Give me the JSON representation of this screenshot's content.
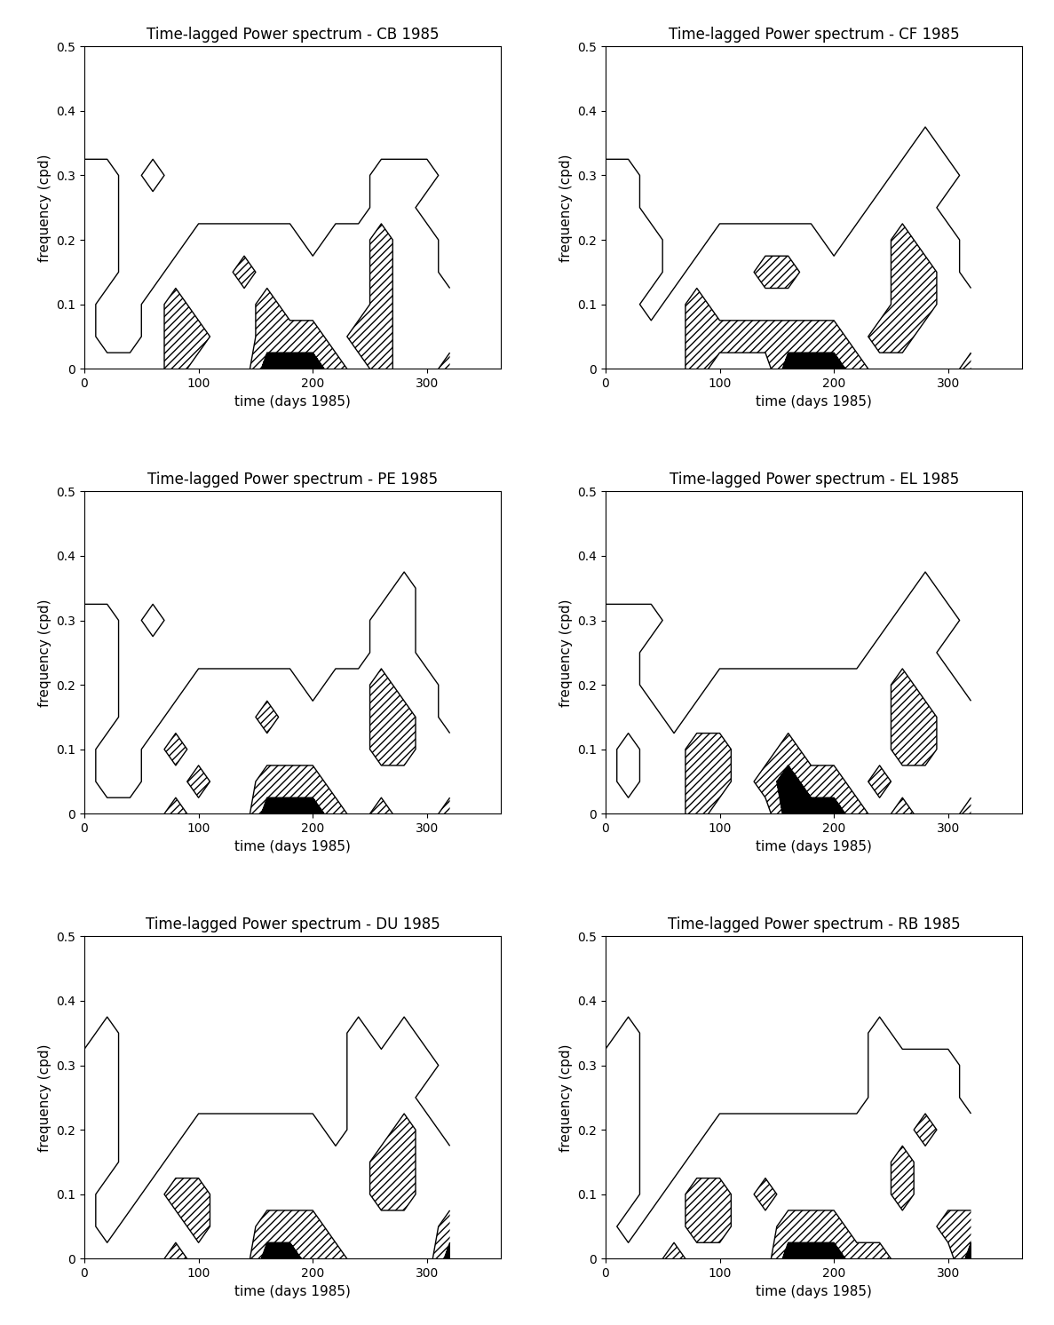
{
  "chart_data": [
    {
      "type": "contour",
      "title": "Time-lagged Power spectrum - CB 1985",
      "x_label": "time (days 1985)",
      "y_label": "frequency (cpd)",
      "x": [
        0,
        20,
        40,
        60,
        80,
        100,
        120,
        140,
        160,
        180,
        200,
        220,
        240,
        260,
        280,
        300,
        320
      ],
      "y": [
        0,
        0.05,
        0.1,
        0.15,
        0.2,
        0.25,
        0.3,
        0.35,
        0.4
      ],
      "z": [
        [
          1,
          1,
          1,
          1,
          2,
          1,
          1,
          1,
          3,
          3,
          3,
          2,
          1,
          2,
          1,
          1,
          2
        ],
        [
          1,
          0,
          0,
          1,
          2,
          2,
          1,
          1,
          2,
          2,
          2,
          1,
          2,
          2,
          1,
          1,
          1
        ],
        [
          1,
          0,
          0,
          1,
          2,
          1,
          1,
          1,
          2,
          1,
          1,
          1,
          1,
          2,
          1,
          1,
          1
        ],
        [
          1,
          1,
          0,
          0,
          1,
          1,
          1,
          2,
          1,
          1,
          1,
          1,
          1,
          2,
          1,
          1,
          0
        ],
        [
          1,
          1,
          0,
          0,
          0,
          1,
          1,
          1,
          1,
          1,
          0,
          1,
          1,
          2,
          1,
          1,
          0
        ],
        [
          1,
          1,
          0,
          0,
          0,
          0,
          0,
          0,
          0,
          0,
          0,
          0,
          0,
          1,
          1,
          0,
          0
        ],
        [
          1,
          1,
          0,
          1,
          0,
          0,
          0,
          0,
          0,
          0,
          0,
          0,
          0,
          1,
          1,
          1,
          0
        ],
        [
          0,
          0,
          0,
          0,
          0,
          0,
          0,
          0,
          0,
          0,
          0,
          0,
          0,
          0,
          0,
          0,
          0
        ],
        [
          0,
          0,
          0,
          0,
          0,
          0,
          0,
          0,
          0,
          0,
          0,
          0,
          0,
          0,
          0,
          0,
          0
        ]
      ],
      "levels": [
        0.5,
        1.5,
        2.5
      ],
      "xlim": [
        0,
        365
      ],
      "ylim": [
        0,
        0.5
      ],
      "xticks": [
        0,
        100,
        200,
        300
      ],
      "yticks": [
        0,
        0.1,
        0.2,
        0.3,
        0.4,
        0.5
      ],
      "grid": false
    },
    {
      "type": "contour",
      "title": "Time-lagged Power spectrum - CF 1985",
      "x_label": "time (days 1985)",
      "y_label": "frequency (cpd)",
      "x": [
        0,
        20,
        40,
        60,
        80,
        100,
        120,
        140,
        160,
        180,
        200,
        220,
        240,
        260,
        280,
        300,
        320
      ],
      "y": [
        0,
        0.05,
        0.1,
        0.15,
        0.2,
        0.25,
        0.3,
        0.35,
        0.4
      ],
      "z": [
        [
          1,
          1,
          1,
          1,
          2,
          1,
          1,
          1,
          3,
          3,
          3,
          2,
          1,
          1,
          1,
          1,
          2
        ],
        [
          1,
          1,
          1,
          1,
          2,
          2,
          2,
          2,
          2,
          2,
          2,
          1,
          2,
          2,
          1,
          1,
          1
        ],
        [
          1,
          1,
          0,
          1,
          2,
          1,
          1,
          1,
          1,
          1,
          1,
          1,
          1,
          2,
          2,
          1,
          1
        ],
        [
          1,
          1,
          1,
          0,
          1,
          1,
          1,
          2,
          2,
          1,
          1,
          1,
          1,
          2,
          2,
          1,
          0
        ],
        [
          1,
          1,
          1,
          0,
          0,
          1,
          1,
          1,
          1,
          1,
          0,
          1,
          1,
          2,
          1,
          1,
          0
        ],
        [
          1,
          1,
          0,
          0,
          0,
          0,
          0,
          0,
          0,
          0,
          0,
          0,
          1,
          1,
          1,
          0,
          0
        ],
        [
          1,
          1,
          0,
          0,
          0,
          0,
          0,
          0,
          0,
          0,
          0,
          0,
          0,
          1,
          1,
          1,
          0
        ],
        [
          0,
          0,
          0,
          0,
          0,
          0,
          0,
          0,
          0,
          0,
          0,
          0,
          0,
          0,
          1,
          0,
          0
        ],
        [
          0,
          0,
          0,
          0,
          0,
          0,
          0,
          0,
          0,
          0,
          0,
          0,
          0,
          0,
          0,
          0,
          0
        ]
      ],
      "levels": [
        0.5,
        1.5,
        2.5
      ],
      "xlim": [
        0,
        365
      ],
      "ylim": [
        0,
        0.5
      ],
      "xticks": [
        0,
        100,
        200,
        300
      ],
      "yticks": [
        0,
        0.1,
        0.2,
        0.3,
        0.4,
        0.5
      ],
      "grid": false
    },
    {
      "type": "contour",
      "title": "Time-lagged Power spectrum - PE 1985",
      "x_label": "time (days 1985)",
      "y_label": "frequency (cpd)",
      "x": [
        0,
        20,
        40,
        60,
        80,
        100,
        120,
        140,
        160,
        180,
        200,
        220,
        240,
        260,
        280,
        300,
        320
      ],
      "y": [
        0,
        0.05,
        0.1,
        0.15,
        0.2,
        0.25,
        0.3,
        0.35,
        0.4
      ],
      "z": [
        [
          1,
          1,
          1,
          1,
          2,
          1,
          1,
          1,
          3,
          3,
          3,
          2,
          1,
          2,
          1,
          1,
          2
        ],
        [
          1,
          0,
          0,
          1,
          1,
          2,
          1,
          1,
          2,
          2,
          2,
          1,
          1,
          1,
          1,
          1,
          1
        ],
        [
          1,
          0,
          0,
          1,
          2,
          1,
          1,
          1,
          1,
          1,
          1,
          1,
          1,
          2,
          2,
          1,
          1
        ],
        [
          1,
          1,
          0,
          0,
          1,
          1,
          1,
          1,
          2,
          1,
          1,
          1,
          1,
          2,
          2,
          1,
          0
        ],
        [
          1,
          1,
          0,
          0,
          0,
          1,
          1,
          1,
          1,
          1,
          0,
          1,
          1,
          2,
          1,
          1,
          0
        ],
        [
          1,
          1,
          0,
          0,
          0,
          0,
          0,
          0,
          0,
          0,
          0,
          0,
          0,
          1,
          1,
          0,
          0
        ],
        [
          1,
          1,
          0,
          1,
          0,
          0,
          0,
          0,
          0,
          0,
          0,
          0,
          0,
          1,
          1,
          0,
          0
        ],
        [
          0,
          0,
          0,
          0,
          0,
          0,
          0,
          0,
          0,
          0,
          0,
          0,
          0,
          0,
          1,
          0,
          0
        ],
        [
          0,
          0,
          0,
          0,
          0,
          0,
          0,
          0,
          0,
          0,
          0,
          0,
          0,
          0,
          0,
          0,
          0
        ]
      ],
      "levels": [
        0.5,
        1.5,
        2.5
      ],
      "xlim": [
        0,
        365
      ],
      "ylim": [
        0,
        0.5
      ],
      "xticks": [
        0,
        100,
        200,
        300
      ],
      "yticks": [
        0,
        0.1,
        0.2,
        0.3,
        0.4,
        0.5
      ],
      "grid": false
    },
    {
      "type": "contour",
      "title": "Time-lagged Power spectrum - EL 1985",
      "x_label": "time (days 1985)",
      "y_label": "frequency (cpd)",
      "x": [
        0,
        20,
        40,
        60,
        80,
        100,
        120,
        140,
        160,
        180,
        200,
        220,
        240,
        260,
        280,
        300,
        320
      ],
      "y": [
        0,
        0.05,
        0.1,
        0.15,
        0.2,
        0.25,
        0.3,
        0.35,
        0.4
      ],
      "z": [
        [
          1,
          1,
          1,
          1,
          2,
          1,
          1,
          1,
          3,
          3,
          3,
          2,
          1,
          2,
          1,
          1,
          2
        ],
        [
          1,
          0,
          1,
          1,
          2,
          2,
          1,
          2,
          3,
          2,
          2,
          1,
          2,
          1,
          1,
          1,
          1
        ],
        [
          1,
          0,
          1,
          1,
          2,
          2,
          1,
          1,
          2,
          1,
          1,
          1,
          1,
          2,
          2,
          1,
          1
        ],
        [
          1,
          1,
          1,
          0,
          1,
          1,
          1,
          1,
          1,
          1,
          1,
          1,
          1,
          2,
          2,
          1,
          1
        ],
        [
          1,
          1,
          0,
          0,
          0,
          1,
          1,
          1,
          1,
          1,
          1,
          1,
          1,
          2,
          1,
          1,
          0
        ],
        [
          1,
          1,
          0,
          0,
          0,
          0,
          0,
          0,
          0,
          0,
          0,
          0,
          1,
          1,
          1,
          0,
          0
        ],
        [
          1,
          1,
          1,
          0,
          0,
          0,
          0,
          0,
          0,
          0,
          0,
          0,
          0,
          1,
          1,
          1,
          0
        ],
        [
          0,
          0,
          0,
          0,
          0,
          0,
          0,
          0,
          0,
          0,
          0,
          0,
          0,
          0,
          1,
          0,
          0
        ],
        [
          0,
          0,
          0,
          0,
          0,
          0,
          0,
          0,
          0,
          0,
          0,
          0,
          0,
          0,
          0,
          0,
          0
        ]
      ],
      "levels": [
        0.5,
        1.5,
        2.5
      ],
      "xlim": [
        0,
        365
      ],
      "ylim": [
        0,
        0.5
      ],
      "xticks": [
        0,
        100,
        200,
        300
      ],
      "yticks": [
        0,
        0.1,
        0.2,
        0.3,
        0.4,
        0.5
      ],
      "grid": false
    },
    {
      "type": "contour",
      "title": "Time-lagged Power spectrum - DU 1985",
      "x_label": "time (days 1985)",
      "y_label": "frequency (cpd)",
      "x": [
        0,
        20,
        40,
        60,
        80,
        100,
        120,
        140,
        160,
        180,
        200,
        220,
        240,
        260,
        280,
        300,
        320
      ],
      "y": [
        0,
        0.05,
        0.1,
        0.15,
        0.2,
        0.25,
        0.3,
        0.35,
        0.4
      ],
      "z": [
        [
          1,
          1,
          1,
          1,
          2,
          1,
          1,
          1,
          3,
          3,
          2,
          2,
          1,
          1,
          1,
          1,
          3
        ],
        [
          1,
          0,
          1,
          1,
          1,
          2,
          1,
          1,
          2,
          2,
          2,
          1,
          1,
          1,
          1,
          1,
          2
        ],
        [
          1,
          0,
          0,
          1,
          2,
          2,
          1,
          1,
          1,
          1,
          1,
          1,
          1,
          2,
          2,
          1,
          1
        ],
        [
          1,
          1,
          0,
          0,
          1,
          1,
          1,
          1,
          1,
          1,
          1,
          1,
          1,
          2,
          2,
          1,
          1
        ],
        [
          1,
          1,
          0,
          0,
          0,
          1,
          1,
          1,
          1,
          1,
          1,
          0,
          1,
          1,
          2,
          1,
          0
        ],
        [
          1,
          1,
          0,
          0,
          0,
          0,
          0,
          0,
          0,
          0,
          0,
          0,
          1,
          1,
          1,
          0,
          0
        ],
        [
          1,
          1,
          0,
          0,
          0,
          0,
          0,
          0,
          0,
          0,
          0,
          0,
          1,
          1,
          1,
          1,
          0
        ],
        [
          0,
          1,
          0,
          0,
          0,
          0,
          0,
          0,
          0,
          0,
          0,
          0,
          1,
          0,
          1,
          0,
          0
        ],
        [
          0,
          0,
          0,
          0,
          0,
          0,
          0,
          0,
          0,
          0,
          0,
          0,
          0,
          0,
          0,
          0,
          0
        ]
      ],
      "levels": [
        0.5,
        1.5,
        2.5
      ],
      "xlim": [
        0,
        365
      ],
      "ylim": [
        0,
        0.5
      ],
      "xticks": [
        0,
        100,
        200,
        300
      ],
      "yticks": [
        0,
        0.1,
        0.2,
        0.3,
        0.4,
        0.5
      ],
      "grid": false
    },
    {
      "type": "contour",
      "title": "Time-lagged Power spectrum - RB 1985",
      "x_label": "time (days 1985)",
      "y_label": "frequency (cpd)",
      "x": [
        0,
        20,
        40,
        60,
        80,
        100,
        120,
        140,
        160,
        180,
        200,
        220,
        240,
        260,
        280,
        300,
        320
      ],
      "y": [
        0,
        0.05,
        0.1,
        0.15,
        0.2,
        0.25,
        0.3,
        0.35,
        0.4
      ],
      "z": [
        [
          1,
          1,
          1,
          2,
          1,
          1,
          1,
          1,
          3,
          3,
          3,
          2,
          2,
          1,
          1,
          1,
          3
        ],
        [
          1,
          0,
          1,
          1,
          2,
          2,
          1,
          1,
          2,
          2,
          2,
          1,
          1,
          1,
          1,
          2,
          2
        ],
        [
          1,
          1,
          0,
          1,
          2,
          2,
          1,
          2,
          1,
          1,
          1,
          1,
          1,
          2,
          1,
          1,
          1
        ],
        [
          1,
          1,
          0,
          0,
          1,
          1,
          1,
          1,
          1,
          1,
          1,
          1,
          1,
          2,
          1,
          1,
          1
        ],
        [
          1,
          1,
          0,
          0,
          0,
          1,
          1,
          1,
          1,
          1,
          1,
          1,
          1,
          1,
          2,
          1,
          1
        ],
        [
          1,
          1,
          0,
          0,
          0,
          0,
          0,
          0,
          0,
          0,
          0,
          0,
          1,
          1,
          1,
          1,
          0
        ],
        [
          1,
          1,
          0,
          0,
          0,
          0,
          0,
          0,
          0,
          0,
          0,
          0,
          1,
          1,
          1,
          1,
          0
        ],
        [
          0,
          1,
          0,
          0,
          0,
          0,
          0,
          0,
          0,
          0,
          0,
          0,
          1,
          0,
          0,
          0,
          0
        ],
        [
          0,
          0,
          0,
          0,
          0,
          0,
          0,
          0,
          0,
          0,
          0,
          0,
          0,
          0,
          0,
          0,
          0
        ]
      ],
      "levels": [
        0.5,
        1.5,
        2.5
      ],
      "xlim": [
        0,
        365
      ],
      "ylim": [
        0,
        0.5
      ],
      "xticks": [
        0,
        100,
        200,
        300
      ],
      "yticks": [
        0,
        0.1,
        0.2,
        0.3,
        0.4,
        0.5
      ],
      "grid": false
    }
  ]
}
